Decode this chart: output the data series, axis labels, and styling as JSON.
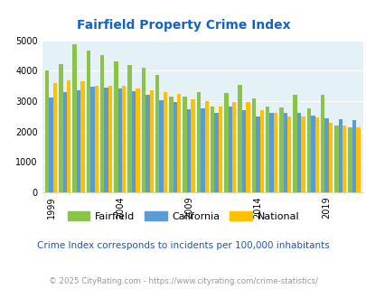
{
  "title": "Fairfield Property Crime Index",
  "years": [
    1999,
    2000,
    2001,
    2002,
    2003,
    2004,
    2005,
    2006,
    2007,
    2008,
    2009,
    2010,
    2011,
    2012,
    2013,
    2014,
    2015,
    2016,
    2017,
    2018,
    2019,
    2020,
    2021
  ],
  "fairfield": [
    4020,
    4200,
    4870,
    4650,
    4500,
    4300,
    4170,
    4100,
    3850,
    3150,
    3130,
    3280,
    2830,
    3250,
    3520,
    3080,
    2830,
    2790,
    3200,
    2770,
    3190,
    2200,
    2130
  ],
  "california": [
    3110,
    3280,
    3340,
    3460,
    3450,
    3420,
    3310,
    3200,
    3020,
    2980,
    2730,
    2760,
    2610,
    2810,
    2690,
    2500,
    2620,
    2620,
    2600,
    2530,
    2420,
    2390,
    2360
  ],
  "national": [
    3600,
    3680,
    3650,
    3510,
    3500,
    3490,
    3420,
    3350,
    3290,
    3220,
    3060,
    2990,
    2810,
    2970,
    2960,
    2700,
    2620,
    2500,
    2490,
    2460,
    2290,
    2200,
    2140
  ],
  "fairfield_color": "#8bc34a",
  "california_color": "#5b9bd5",
  "national_color": "#ffc000",
  "bg_color": "#e4f2f7",
  "title_color": "#1565c0",
  "subtitle": "Crime Index corresponds to incidents per 100,000 inhabitants",
  "footer": "© 2025 CityRating.com - https://www.cityrating.com/crime-statistics/",
  "subtitle_color": "#2255aa",
  "footer_color": "#999999",
  "ylim": [
    0,
    5000
  ],
  "yticks": [
    0,
    1000,
    2000,
    3000,
    4000,
    5000
  ],
  "xtick_years": [
    1999,
    2004,
    2009,
    2014,
    2019
  ]
}
